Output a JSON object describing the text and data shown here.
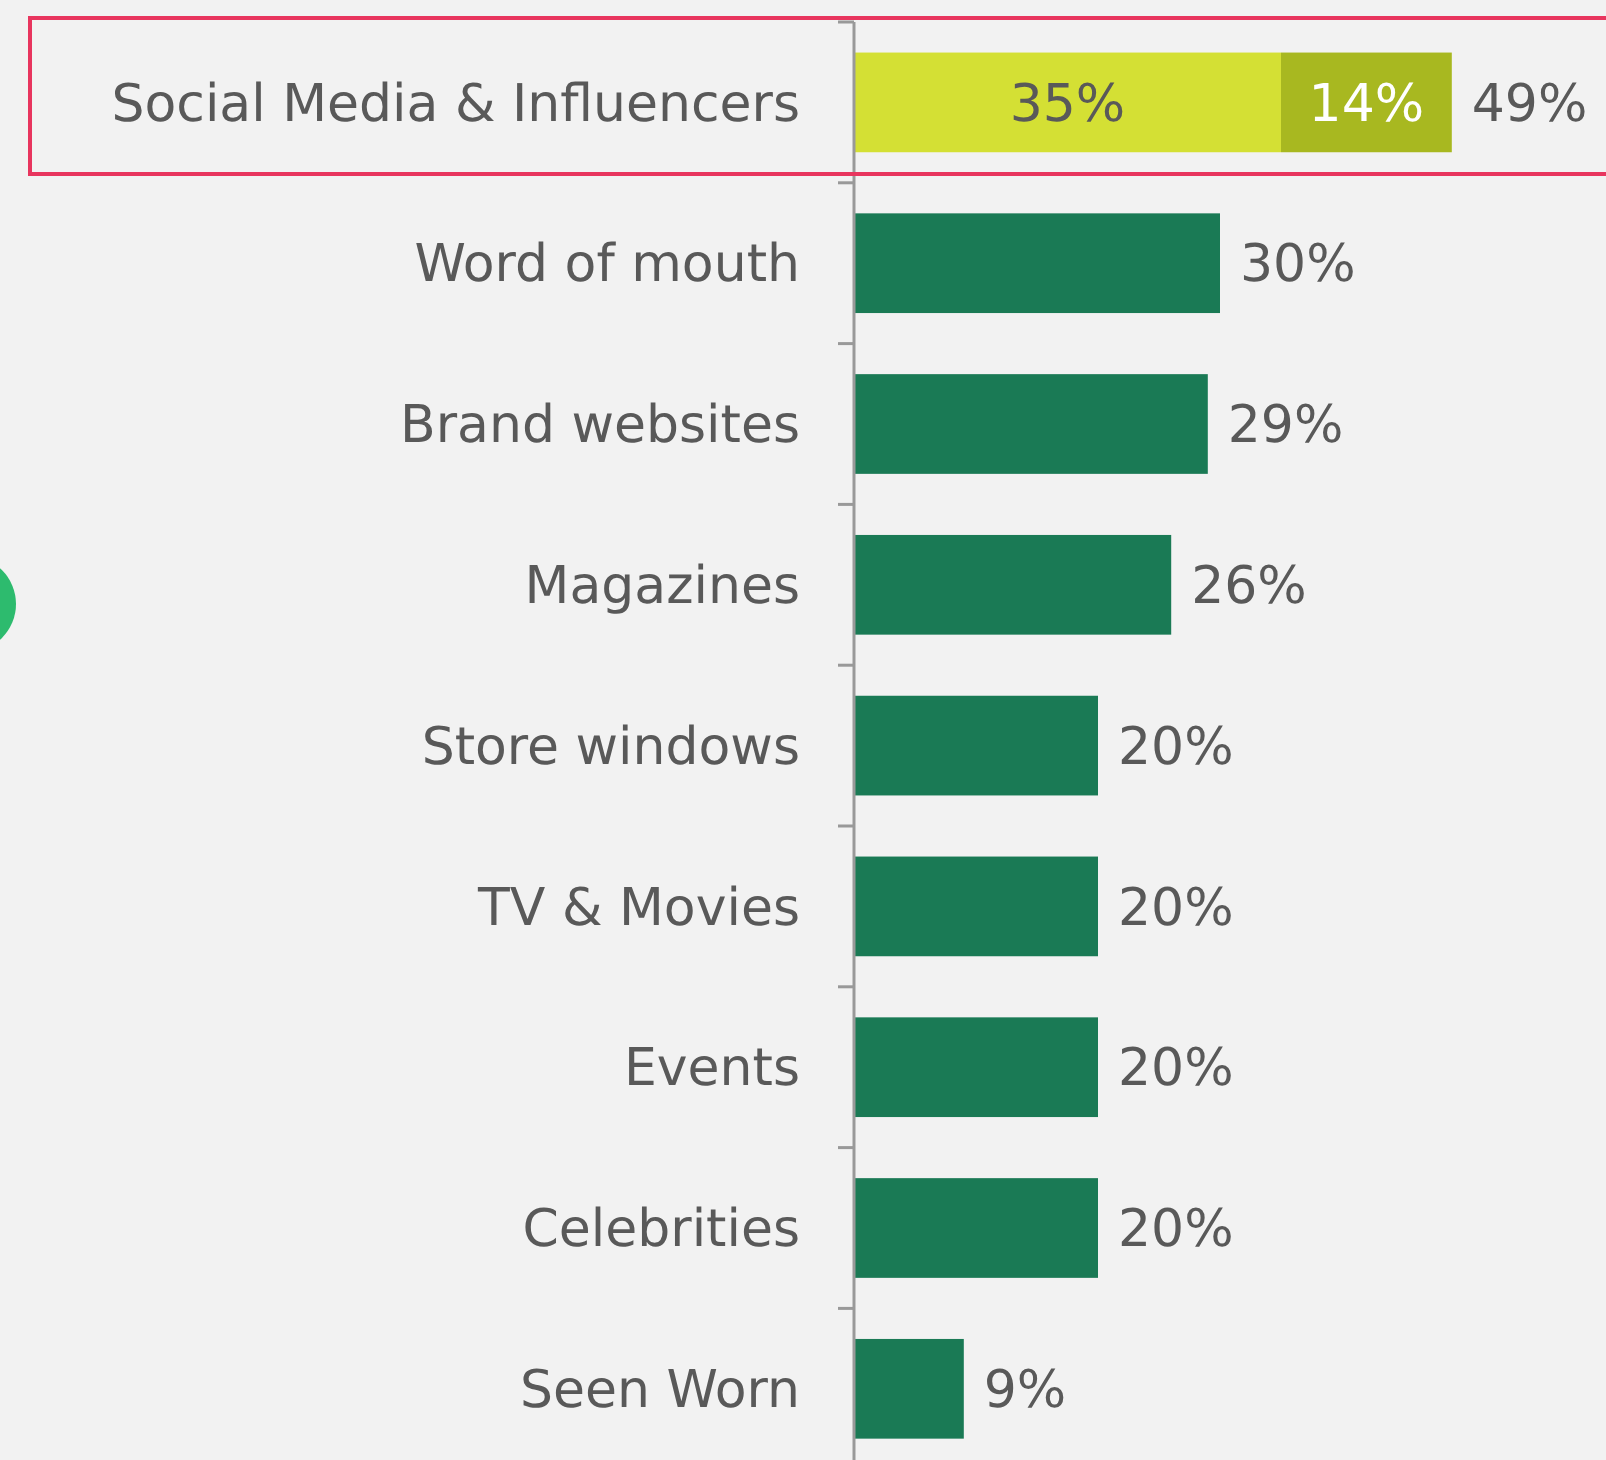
{
  "chart_data": {
    "type": "bar",
    "orientation": "horizontal",
    "stacked": true,
    "categories": [
      "Social Media & Influencers",
      "Word of mouth",
      "Brand websites",
      "Magazines",
      "Store windows",
      "TV & Movies",
      "Events",
      "Celebrities",
      "Seen Worn"
    ],
    "series": [
      {
        "colors": [
          "#d4e034",
          "#1a7a55",
          "#1a7a55",
          "#1a7a55",
          "#1a7a55",
          "#1a7a55",
          "#1a7a55",
          "#1a7a55",
          "#1a7a55"
        ],
        "values": [
          35,
          30,
          29,
          26,
          20,
          20,
          20,
          20,
          9
        ],
        "value_labels": [
          "35%",
          "30%",
          "29%",
          "26%",
          "20%",
          "20%",
          "20%",
          "20%",
          "9%"
        ]
      },
      {
        "color": "#a8b820",
        "values": [
          14,
          null,
          null,
          null,
          null,
          null,
          null,
          null,
          null
        ],
        "value_labels": [
          "14%",
          null,
          null,
          null,
          null,
          null,
          null,
          null,
          null
        ]
      }
    ],
    "totals": [
      "49%",
      null,
      null,
      null,
      null,
      null,
      null,
      null,
      null
    ]
  }
}
